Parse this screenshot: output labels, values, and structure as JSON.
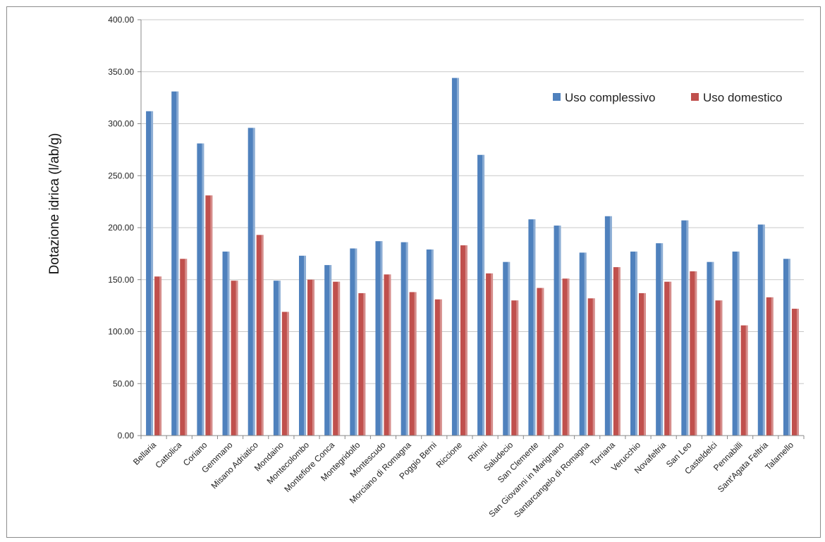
{
  "chart_data": {
    "type": "bar",
    "ylabel": "Dotazione idrica (l/ab/g)",
    "xlabel": "",
    "ylim": [
      0,
      400
    ],
    "yticks": [
      "0.00",
      "50.00",
      "100.00",
      "150.00",
      "200.00",
      "250.00",
      "300.00",
      "350.00",
      "400.00"
    ],
    "grid": true,
    "legend_position": "top-right",
    "categories": [
      "Bellaria",
      "Cattolica",
      "Coriano",
      "Gemmano",
      "Misano Adriatico",
      "Mondaino",
      "Montecolombo",
      "Montefiore Conca",
      "Montegridolfo",
      "Montescudo",
      "Morciano di Romagna",
      "Poggio Berni",
      "Riccione",
      "Rimini",
      "Saludecio",
      "San Clemente",
      "San Giovanni in Marignano",
      "Santarcangelo di Romagna",
      "Torriana",
      "Verucchio",
      "Novafeltria",
      "San Leo",
      "Casteldelci",
      "Pennabilli",
      "Sant'Agata Feltria",
      "Talamello"
    ],
    "series": [
      {
        "name": "Uso complessivo",
        "color": "#4f81bd",
        "values": [
          312,
          331,
          281,
          177,
          296,
          149,
          173,
          164,
          180,
          187,
          186,
          179,
          344,
          270,
          167,
          208,
          202,
          176,
          211,
          177,
          185,
          207,
          167,
          177,
          203,
          170
        ]
      },
      {
        "name": "Uso domestico",
        "color": "#c0504d",
        "values": [
          153,
          170,
          231,
          149,
          193,
          119,
          150,
          148,
          137,
          155,
          138,
          131,
          183,
          156,
          130,
          142,
          151,
          132,
          162,
          137,
          148,
          158,
          130,
          106,
          133,
          122
        ]
      }
    ]
  }
}
